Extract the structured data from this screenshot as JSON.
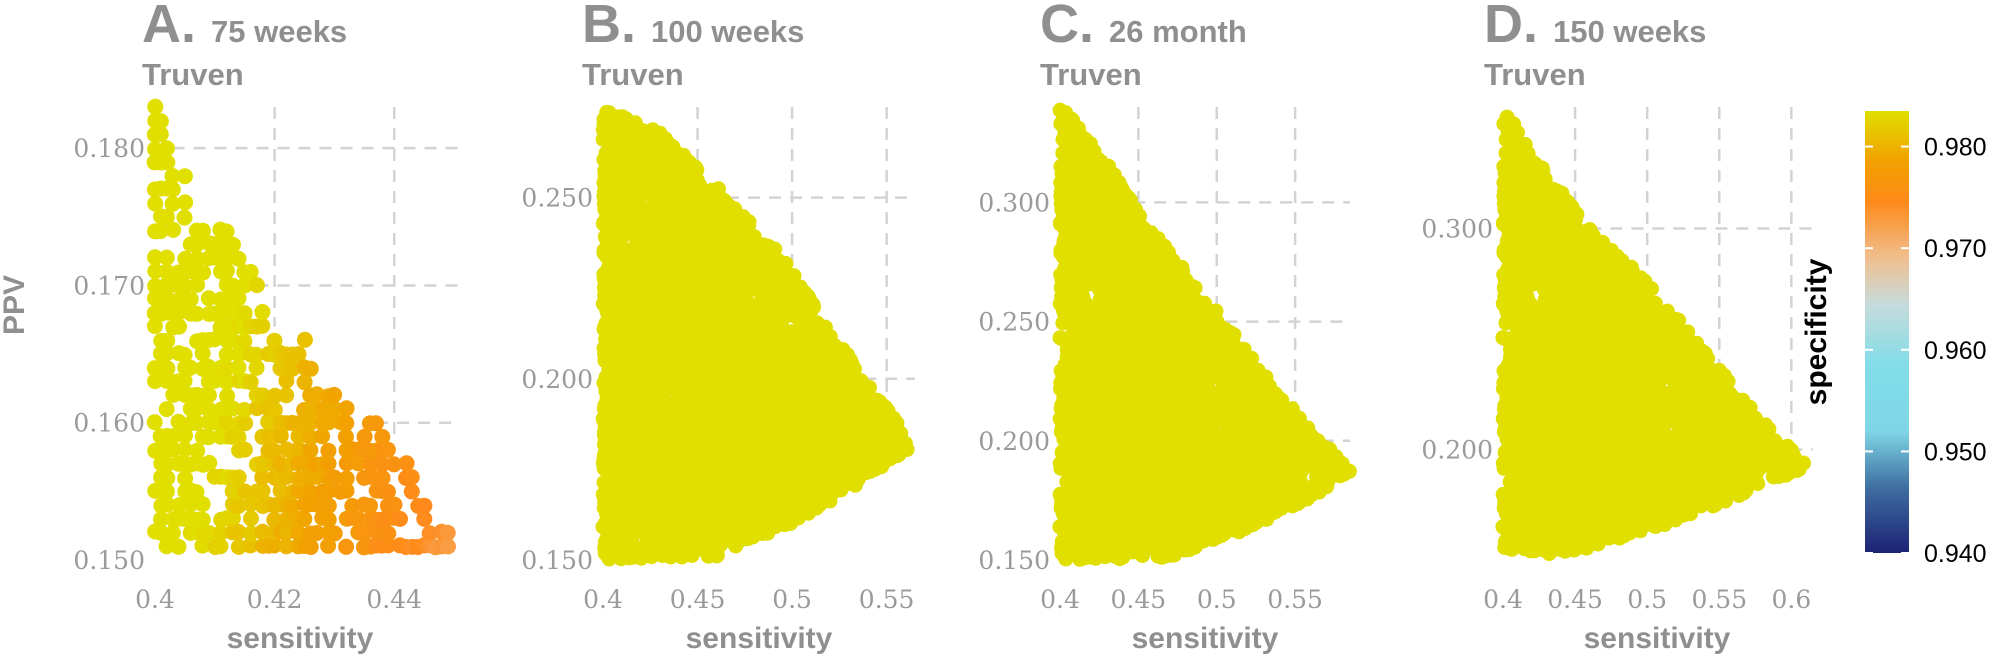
{
  "chart_data": [
    {
      "type": "scatter",
      "letter": "A.",
      "title": "75 weeks",
      "subtitle": "Truven",
      "xlabel": "sensitivity",
      "ylabel": "PPV",
      "xlim": [
        0.4,
        0.451
      ],
      "ylim": [
        0.15,
        0.183
      ],
      "x_ticks": [
        0.4,
        0.42,
        0.44
      ],
      "x_tick_labels": [
        "0.4",
        "0.42",
        "0.44"
      ],
      "y_ticks": [
        0.15,
        0.16,
        0.17,
        0.18
      ],
      "y_tick_labels": [
        "0.150",
        "0.160",
        "0.170",
        "0.180"
      ],
      "grid": true,
      "discrete_x_step": 0.001,
      "discrete_y_step": 0.001,
      "region": {
        "upper_edge": [
          [
            0.4,
            0.183
          ],
          [
            0.403,
            0.18
          ],
          [
            0.408,
            0.175
          ],
          [
            0.412,
            0.174
          ],
          [
            0.416,
            0.171
          ],
          [
            0.42,
            0.167
          ],
          [
            0.425,
            0.166
          ],
          [
            0.43,
            0.162
          ],
          [
            0.437,
            0.16
          ],
          [
            0.441,
            0.158
          ],
          [
            0.446,
            0.154
          ],
          [
            0.451,
            0.151
          ]
        ],
        "lower_edge": [
          [
            0.4,
            0.151
          ],
          [
            0.451,
            0.151
          ]
        ]
      },
      "color_model": {
        "a": 0.1225,
        "b": 0.985,
        "c": -0.25
      }
    },
    {
      "type": "scatter",
      "letter": "B.",
      "title": "100 weeks",
      "subtitle": "Truven",
      "xlabel": "sensitivity",
      "ylabel": "",
      "xlim": [
        0.4,
        0.565
      ],
      "ylim": [
        0.15,
        0.275
      ],
      "x_ticks": [
        0.4,
        0.45,
        0.5,
        0.55
      ],
      "x_tick_labels": [
        "0.4",
        "0.45",
        "0.5",
        "0.55"
      ],
      "y_ticks": [
        0.15,
        0.2,
        0.25
      ],
      "y_tick_labels": [
        "0.150",
        "0.200",
        "0.250"
      ],
      "grid": true,
      "region": {
        "upper_edge": [
          [
            0.403,
            0.274
          ],
          [
            0.43,
            0.268
          ],
          [
            0.46,
            0.253
          ],
          [
            0.49,
            0.237
          ],
          [
            0.52,
            0.214
          ],
          [
            0.545,
            0.195
          ],
          [
            0.565,
            0.182
          ]
        ],
        "lower_edge": [
          [
            0.4,
            0.15
          ],
          [
            0.46,
            0.151
          ],
          [
            0.5,
            0.16
          ],
          [
            0.53,
            0.169
          ],
          [
            0.565,
            0.182
          ]
        ]
      },
      "color_model": {
        "a": 0.3,
        "b": 1.045,
        "c": -0.23
      }
    },
    {
      "type": "scatter",
      "letter": "C.",
      "title": "26 month",
      "subtitle": "Truven",
      "xlabel": "sensitivity",
      "ylabel": "",
      "xlim": [
        0.4,
        0.585
      ],
      "ylim": [
        0.15,
        0.34
      ],
      "x_ticks": [
        0.4,
        0.45,
        0.5,
        0.55
      ],
      "x_tick_labels": [
        "0.4",
        "0.45",
        "0.5",
        "0.55"
      ],
      "y_ticks": [
        0.15,
        0.2,
        0.25,
        0.3
      ],
      "y_tick_labels": [
        "0.150",
        "0.200",
        "0.250",
        "0.300"
      ],
      "grid": true,
      "region": {
        "upper_edge": [
          [
            0.401,
            0.34
          ],
          [
            0.43,
            0.317
          ],
          [
            0.46,
            0.287
          ],
          [
            0.5,
            0.255
          ],
          [
            0.54,
            0.22
          ],
          [
            0.585,
            0.187
          ]
        ],
        "lower_edge": [
          [
            0.4,
            0.15
          ],
          [
            0.47,
            0.151
          ],
          [
            0.52,
            0.163
          ],
          [
            0.56,
            0.176
          ],
          [
            0.585,
            0.187
          ]
        ]
      },
      "color_model": {
        "a": 0.3,
        "b": 1.06,
        "c": -0.23
      }
    },
    {
      "type": "scatter",
      "letter": "D.",
      "title": "150 weeks",
      "subtitle": "Truven",
      "xlabel": "sensitivity",
      "ylabel": "",
      "xlim": [
        0.4,
        0.615
      ],
      "ylim": [
        0.15,
        0.355
      ],
      "x_ticks": [
        0.4,
        0.45,
        0.5,
        0.55,
        0.6
      ],
      "x_tick_labels": [
        "0.4",
        "0.45",
        "0.5",
        "0.55",
        "0.6"
      ],
      "y_ticks": [
        0.2,
        0.3
      ],
      "y_tick_labels": [
        "0.200",
        "0.300"
      ],
      "grid": true,
      "region": {
        "upper_edge": [
          [
            0.402,
            0.353
          ],
          [
            0.43,
            0.325
          ],
          [
            0.46,
            0.3
          ],
          [
            0.5,
            0.276
          ],
          [
            0.54,
            0.244
          ],
          [
            0.58,
            0.213
          ],
          [
            0.612,
            0.192
          ]
        ],
        "lower_edge": [
          [
            0.4,
            0.155
          ],
          [
            0.44,
            0.152
          ],
          [
            0.5,
            0.163
          ],
          [
            0.56,
            0.178
          ],
          [
            0.612,
            0.192
          ]
        ]
      },
      "color_model": {
        "a": 0.3,
        "b": 1.075,
        "c": -0.23
      }
    }
  ],
  "legend": {
    "title": "specificity",
    "range": [
      0.94,
      0.9835
    ],
    "ticks": [
      0.94,
      0.95,
      0.96,
      0.97,
      0.98
    ],
    "tick_labels": [
      "0.940",
      "0.950",
      "0.960",
      "0.970",
      "0.980"
    ],
    "gradient_stops": [
      {
        "value": 0.94,
        "color": "#1c2275"
      },
      {
        "value": 0.9465,
        "color": "#3f6fa1"
      },
      {
        "value": 0.952,
        "color": "#7fd6e6"
      },
      {
        "value": 0.9585,
        "color": "#82dde8"
      },
      {
        "value": 0.9645,
        "color": "#c7dbdb"
      },
      {
        "value": 0.969,
        "color": "#f0bf8f"
      },
      {
        "value": 0.9745,
        "color": "#ff8a1b"
      },
      {
        "value": 0.9785,
        "color": "#f2a000"
      },
      {
        "value": 0.9835,
        "color": "#e0df00"
      }
    ]
  }
}
